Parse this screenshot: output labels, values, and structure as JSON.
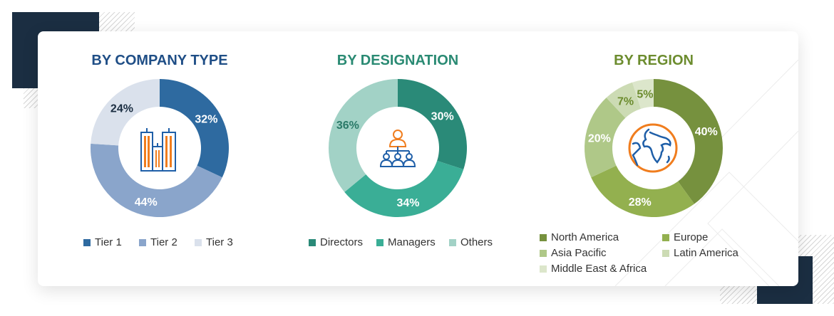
{
  "chart_data": [
    {
      "type": "pie",
      "title": "BY COMPANY TYPE",
      "title_color": "#1f4e86",
      "icon": "buildings-icon",
      "categories": [
        "Tier 1",
        "Tier 2",
        "Tier 3"
      ],
      "values": [
        32,
        44,
        24
      ],
      "labels": [
        "32%",
        "44%",
        "24%"
      ],
      "colors": [
        "#2e6aa0",
        "#8aa5cb",
        "#dae1ec"
      ],
      "label_colors": [
        "#ffffff",
        "#ffffff",
        "#1b2e42"
      ],
      "legend": "bottom"
    },
    {
      "type": "pie",
      "title": "BY DESIGNATION",
      "title_color": "#2a8a73",
      "icon": "hierarchy-people-icon",
      "categories": [
        "Directors",
        "Managers",
        "Others"
      ],
      "values": [
        30,
        34,
        36
      ],
      "labels": [
        "30%",
        "34%",
        "36%"
      ],
      "colors": [
        "#2a8a78",
        "#3aae96",
        "#a2d2c6"
      ],
      "label_colors": [
        "#ffffff",
        "#ffffff",
        "#2a7a68"
      ],
      "legend": "bottom"
    },
    {
      "type": "pie",
      "title": "BY REGION",
      "title_color": "#6c8c2e",
      "icon": "globe-icon",
      "categories": [
        "North America",
        "Europe",
        "Asia Pacific",
        "Latin America",
        "Middle East & Africa"
      ],
      "values": [
        40,
        28,
        20,
        7,
        5
      ],
      "labels": [
        "40%",
        "28%",
        "20%",
        "7%",
        "5%"
      ],
      "colors": [
        "#76913e",
        "#93b04f",
        "#afc888",
        "#ccdbb4",
        "#dce6cb"
      ],
      "label_colors": [
        "#ffffff",
        "#ffffff",
        "#ffffff",
        "#6c8c2e",
        "#6c8c2e"
      ],
      "legend": "bottom"
    }
  ]
}
